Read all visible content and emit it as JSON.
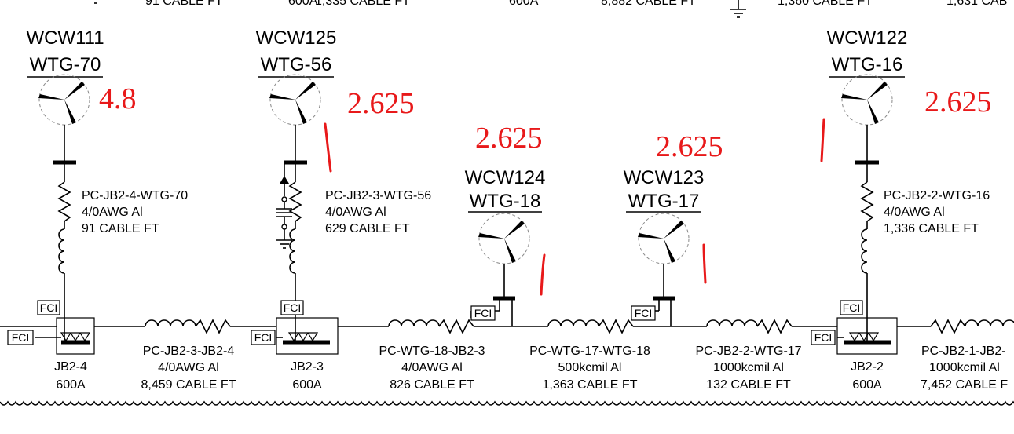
{
  "top_strip": {
    "t1": "91 CABLE FT",
    "t2": "600A",
    "t3": "1,335 CABLE FT",
    "t4": "600A",
    "t5": "8,882 CABLE FT",
    "t6": "1,360 CABLE FT",
    "t7": "1,631 CAB"
  },
  "turbines": [
    {
      "id": "WCW111",
      "tag": "WTG-70",
      "rating": "4.8"
    },
    {
      "id": "WCW125",
      "tag": "WTG-56",
      "rating": "2.625"
    },
    {
      "id": "WCW124",
      "tag": "WTG-18",
      "rating": "2.625"
    },
    {
      "id": "WCW123",
      "tag": "WTG-17",
      "rating": "2.625"
    },
    {
      "id": "WCW122",
      "tag": "WTG-16",
      "rating": "2.625"
    }
  ],
  "feeder_cables": [
    {
      "name": "PC-JB2-4-WTG-70",
      "size": "4/0AWG Al",
      "length": "91 CABLE FT"
    },
    {
      "name": "PC-JB2-3-WTG-56",
      "size": "4/0AWG Al",
      "length": "629 CABLE FT"
    },
    {
      "name": "PC-JB2-2-WTG-16",
      "size": "4/0AWG Al",
      "length": "1,336 CABLE FT"
    }
  ],
  "junction_boxes": [
    {
      "name": "JB2-4",
      "rating": "600A"
    },
    {
      "name": "JB2-3",
      "rating": "600A"
    },
    {
      "name": "JB2-2",
      "rating": "600A"
    }
  ],
  "bus_cables": [
    {
      "name": "PC-JB2-3-JB2-4",
      "size": "4/0AWG Al",
      "length": "8,459 CABLE FT"
    },
    {
      "name": "PC-WTG-18-JB2-3",
      "size": "4/0AWG Al",
      "length": "826 CABLE FT"
    },
    {
      "name": "PC-WTG-17-WTG-18",
      "size": "500kcmil Al",
      "length": "1,363 CABLE FT"
    },
    {
      "name": "PC-JB2-2-WTG-17",
      "size": "1000kcmil Al",
      "length": "132 CABLE FT"
    },
    {
      "name": "PC-JB2-1-JB2-",
      "size": "1000kcmil Al",
      "length": "7,452 CABLE F"
    }
  ],
  "fci_label": "FCI",
  "colors": {
    "markup": "#e8191a",
    "line": "#000000"
  }
}
